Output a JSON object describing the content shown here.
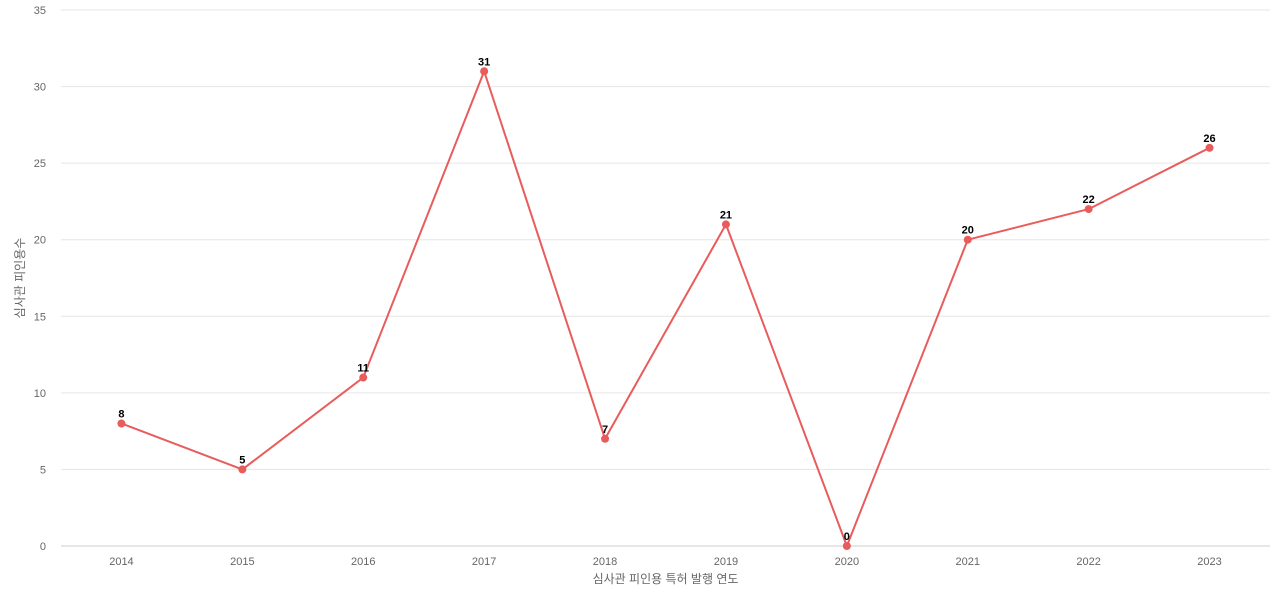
{
  "chart_data": {
    "type": "line",
    "title": "",
    "xlabel": "심사관 피인용 특허 발행 연도",
    "ylabel": "심사관 피인용수",
    "categories": [
      "2014",
      "2015",
      "2016",
      "2017",
      "2018",
      "2019",
      "2020",
      "2021",
      "2022",
      "2023"
    ],
    "series": [
      {
        "values": [
          8,
          5,
          11,
          31,
          7,
          21,
          0,
          20,
          22,
          26
        ],
        "color": "#e85c5c"
      }
    ],
    "ylim": [
      0,
      35
    ],
    "yticks": [
      0,
      5,
      10,
      15,
      20,
      25,
      30,
      35
    ],
    "grid": true,
    "data_labels": true,
    "legend": "none"
  }
}
